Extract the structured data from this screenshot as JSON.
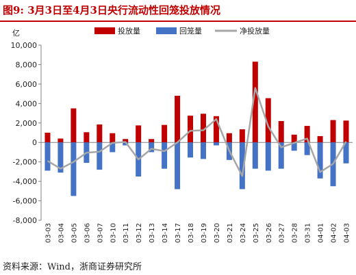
{
  "header": {
    "title": "图9:   3月3日至4月3日央行流动性回笼投放情况"
  },
  "footer": {
    "source": "资料来源：Wind，浙商证券研究所"
  },
  "colors": {
    "injection": "#c00000",
    "withdrawal": "#4472c4",
    "net": "#a6a6a6",
    "title": "#c00000"
  },
  "chart_data": {
    "type": "bar",
    "ylabel": "亿",
    "ylim": [
      -8000,
      10000
    ],
    "yticks": [
      "-8,000",
      "-6,000",
      "-4,000",
      "-2,000",
      "0",
      "2,000",
      "4,000",
      "6,000",
      "8,000",
      "10,000"
    ],
    "ytick_values": [
      -8000,
      -6000,
      -4000,
      -2000,
      0,
      2000,
      4000,
      6000,
      8000,
      10000
    ],
    "categories": [
      "03-03",
      "03-04",
      "03-05",
      "03-06",
      "03-07",
      "03-10",
      "03-11",
      "03-12",
      "03-13",
      "03-14",
      "03-17",
      "03-18",
      "03-19",
      "03-20",
      "03-21",
      "03-24",
      "03-25",
      "03-26",
      "03-27",
      "03-28",
      "03-31",
      "04-01",
      "04-02",
      "04-03"
    ],
    "legend_position": "top",
    "grid": false,
    "series": [
      {
        "name": "投放量",
        "kind": "bar",
        "values": [
          1000,
          400,
          3500,
          1050,
          1850,
          950,
          350,
          1750,
          350,
          1800,
          4800,
          2750,
          2950,
          2700,
          950,
          1350,
          8300,
          4550,
          2200,
          800,
          1700,
          650,
          2300,
          2250
        ]
      },
      {
        "name": "回笼量",
        "kind": "bar",
        "values": [
          -2900,
          -3100,
          -5500,
          -2100,
          -2800,
          -1000,
          -300,
          -3500,
          -1000,
          -2700,
          -4800,
          -1550,
          -1700,
          -300,
          -1800,
          -4800,
          -2700,
          -2900,
          -2700,
          -850,
          -1300,
          -3700,
          -4500,
          -2150
        ]
      },
      {
        "name": "净投放量",
        "kind": "line",
        "values": [
          -1900,
          -2700,
          -2000,
          -1050,
          -950,
          -50,
          50,
          -1750,
          -650,
          -900,
          0,
          1200,
          1250,
          2400,
          -850,
          -3450,
          5600,
          1650,
          -500,
          -50,
          400,
          -3050,
          -2200,
          100
        ]
      }
    ]
  }
}
